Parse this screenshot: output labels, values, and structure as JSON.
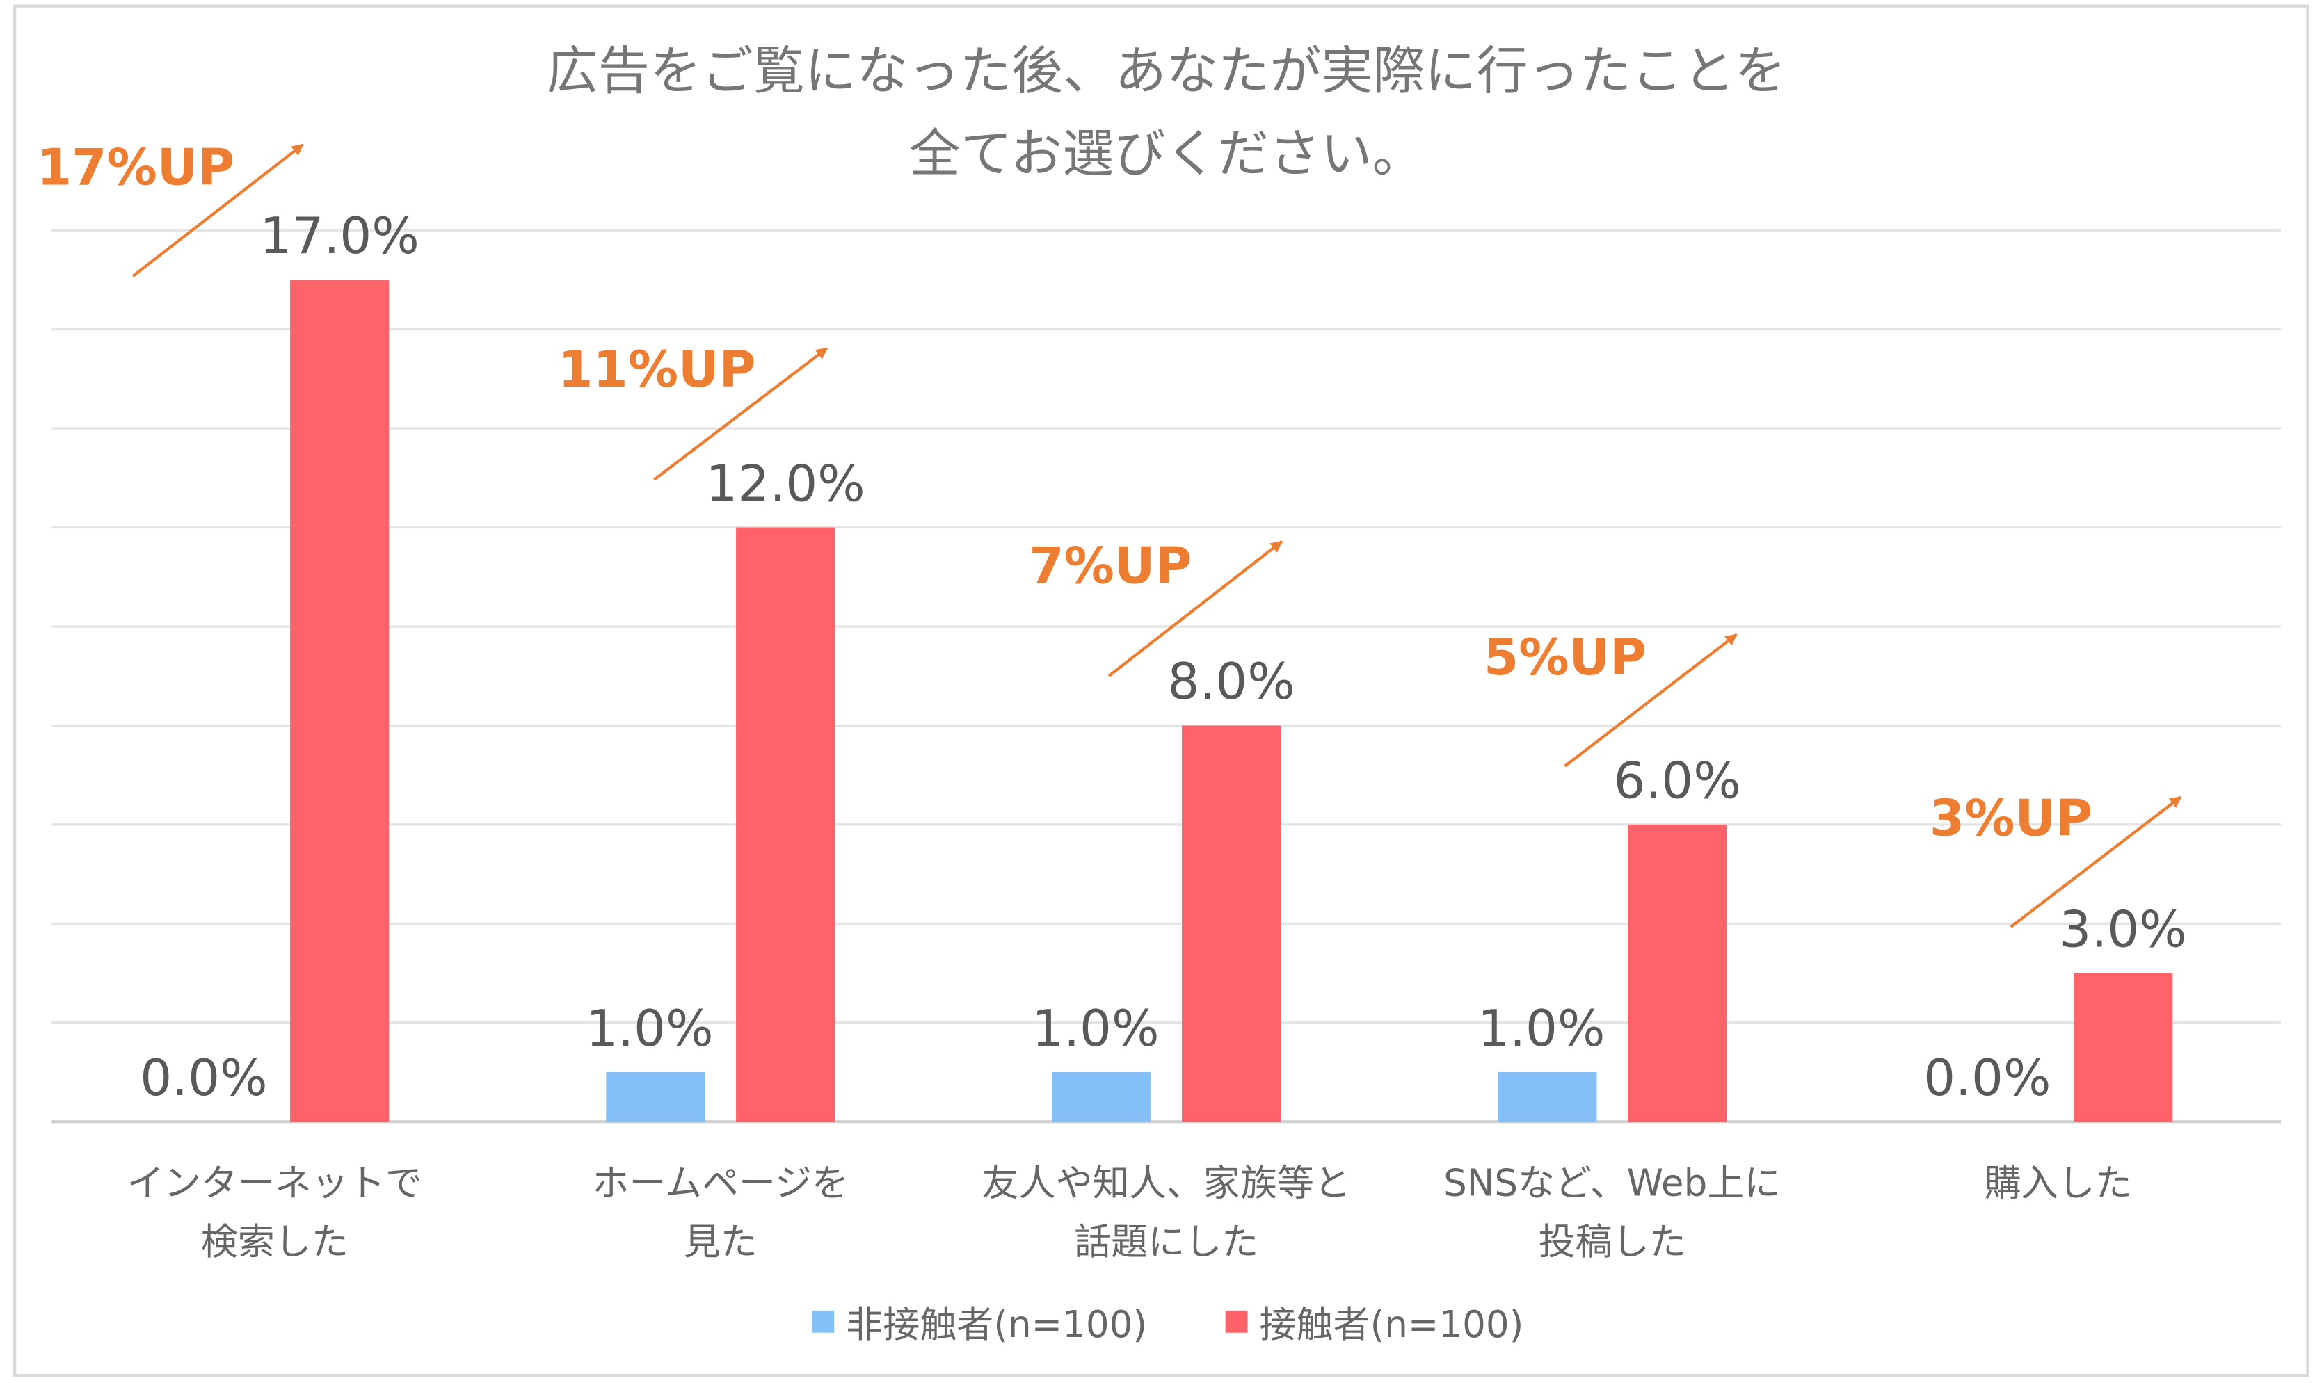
{
  "chart_data": {
    "type": "bar",
    "title_lines": [
      "広告をご覧になった後、あなたが実際に行ったことを",
      "全てお選びください。"
    ],
    "categories": [
      [
        "インターネットで",
        "検索した"
      ],
      [
        "ホームページを",
        "見た"
      ],
      [
        "友人や知人、家族等と",
        "話題にした"
      ],
      [
        "SNSなど、Web上に",
        "投稿した"
      ],
      [
        "購入した"
      ]
    ],
    "series": [
      {
        "name": "非接触者(n=100)",
        "color": "#85BFF7",
        "values": [
          0.0,
          1.0,
          1.0,
          1.0,
          0.0
        ],
        "labels": [
          "0.0%",
          "1.0%",
          "1.0%",
          "1.0%",
          "0.0%"
        ]
      },
      {
        "name": "接触者(n=100)",
        "color": "#FF6268",
        "values": [
          17.0,
          12.0,
          8.0,
          6.0,
          3.0
        ],
        "labels": [
          "17.0%",
          "12.0%",
          "8.0%",
          "6.0%",
          "3.0%"
        ]
      }
    ],
    "annotations": [
      "17%UP",
      "11%UP",
      "7%UP",
      "5%UP",
      "3%UP"
    ],
    "annotation_color": "#ED7D31",
    "ylim": [
      0,
      18
    ],
    "grid": true,
    "grid_step": 2,
    "y_axis_labels_shown": false,
    "legend_position": "bottom"
  }
}
